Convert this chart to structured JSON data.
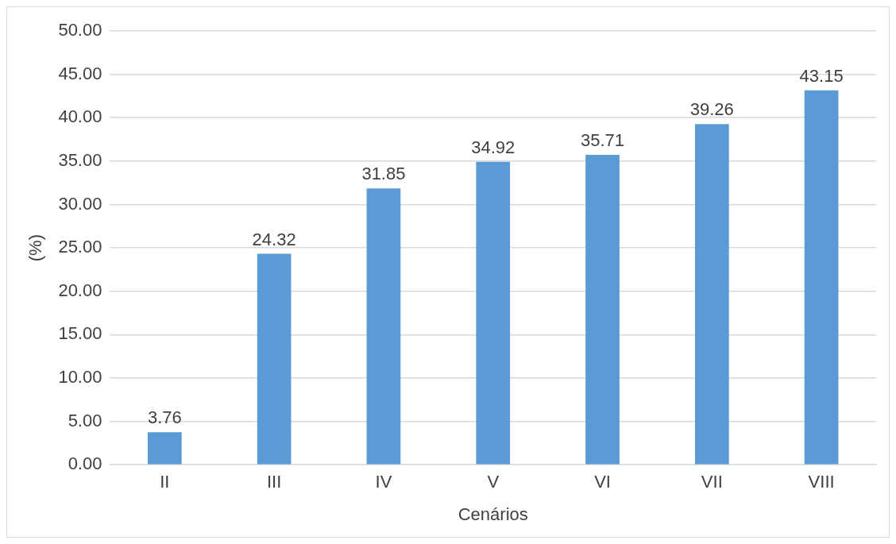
{
  "chart_data": {
    "type": "bar",
    "xlabel": "Cenários",
    "ylabel": "(%)",
    "categories": [
      "II",
      "III",
      "IV",
      "V",
      "VI",
      "VII",
      "VIII"
    ],
    "values": [
      3.76,
      24.32,
      31.85,
      34.92,
      35.71,
      39.26,
      43.15
    ],
    "color": "#5b9bd5",
    "ylim": [
      0,
      50
    ],
    "yticks": [
      {
        "value": 0,
        "label": "0.00"
      },
      {
        "value": 5,
        "label": "5.00"
      },
      {
        "value": 10,
        "label": "10.00"
      },
      {
        "value": 15,
        "label": "15.00"
      },
      {
        "value": 20,
        "label": "20.00"
      },
      {
        "value": 25,
        "label": "25.00"
      },
      {
        "value": 30,
        "label": "30.00"
      },
      {
        "value": 35,
        "label": "35.00"
      },
      {
        "value": 40,
        "label": "40.00"
      },
      {
        "value": 45,
        "label": "45.00"
      },
      {
        "value": 50,
        "label": "50.00"
      }
    ],
    "grid": "y",
    "data_labels": true,
    "legend": false
  }
}
